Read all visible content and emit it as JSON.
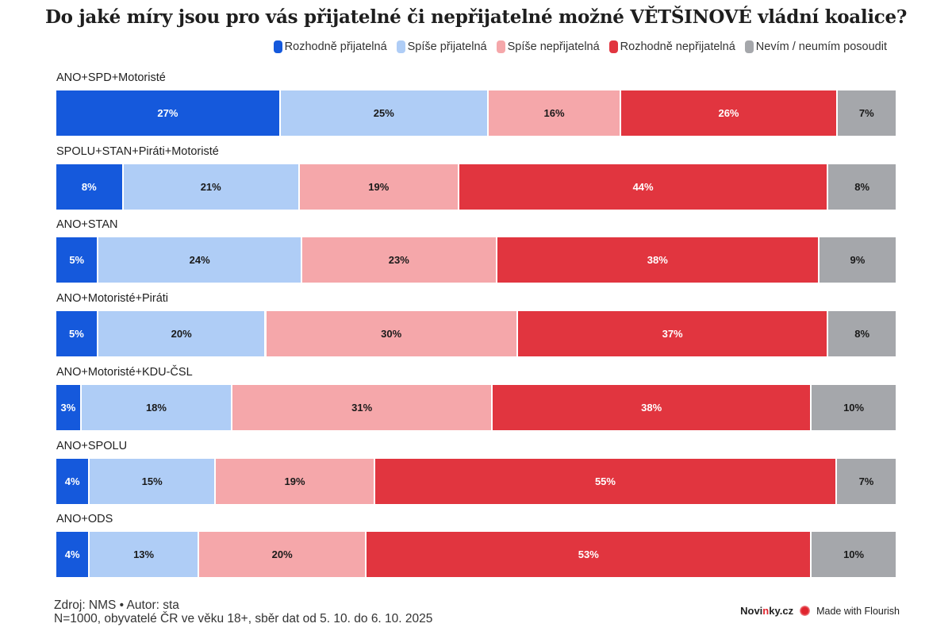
{
  "colors": {
    "definitely_acceptable": "#1559dc",
    "rather_acceptable": "#afcdf6",
    "rather_unacceptable": "#f5a7aa",
    "definitely_unacceptable": "#e1353f",
    "dont_know": "#a5a7ab"
  },
  "chart_data": {
    "type": "bar",
    "orientation": "horizontal",
    "stacked": true,
    "normalized": true,
    "title": "Do jaké míry jsou pro vás přijatelné či nepřijatelné možné VĚTŠINOVÉ vládní koalice?",
    "xlabel": "",
    "ylabel": "",
    "legend_position": "top-right",
    "grid": false,
    "unit": "%",
    "categories": [
      "ANO+SPD+Motoristé",
      "SPOLU+STAN+Piráti+Motoristé",
      "ANO+STAN",
      "ANO+Motoristé+Piráti",
      "ANO+Motoristé+KDU-ČSL",
      "ANO+SPOLU",
      "ANO+ODS"
    ],
    "series": [
      {
        "key": "definitely_acceptable",
        "name": "Rozhodně přijatelná",
        "color": "#1559dc",
        "text_color": "#ffffff",
        "values": [
          27,
          8,
          5,
          5,
          3,
          4,
          4
        ]
      },
      {
        "key": "rather_acceptable",
        "name": "Spíše přijatelná",
        "color": "#afcdf6",
        "text_color": "#1a1a1a",
        "values": [
          25,
          21,
          24,
          20,
          18,
          15,
          13
        ]
      },
      {
        "key": "rather_unacceptable",
        "name": "Spíše nepřijatelná",
        "color": "#f5a7aa",
        "text_color": "#1a1a1a",
        "values": [
          16,
          19,
          23,
          30,
          31,
          19,
          20
        ]
      },
      {
        "key": "definitely_unacceptable",
        "name": "Rozhodně nepřijatelná",
        "color": "#e1353f",
        "text_color": "#ffffff",
        "values": [
          26,
          44,
          38,
          37,
          38,
          55,
          53
        ]
      },
      {
        "key": "dont_know",
        "name": "Nevím / neumím posoudit",
        "color": "#a5a7ab",
        "text_color": "#1a1a1a",
        "values": [
          7,
          8,
          9,
          8,
          10,
          7,
          10
        ]
      }
    ]
  },
  "footer": {
    "source": "Zdroj: NMS • Autor: sta",
    "note": "N=1000, obyvatelé ČR ve věku 18+, sběr dat od 5. 10. do 6. 10. 2025",
    "brand_prefix": "Novi",
    "brand_highlight": "n",
    "brand_suffix": "ky.cz",
    "made_with": "Made with Flourish"
  }
}
